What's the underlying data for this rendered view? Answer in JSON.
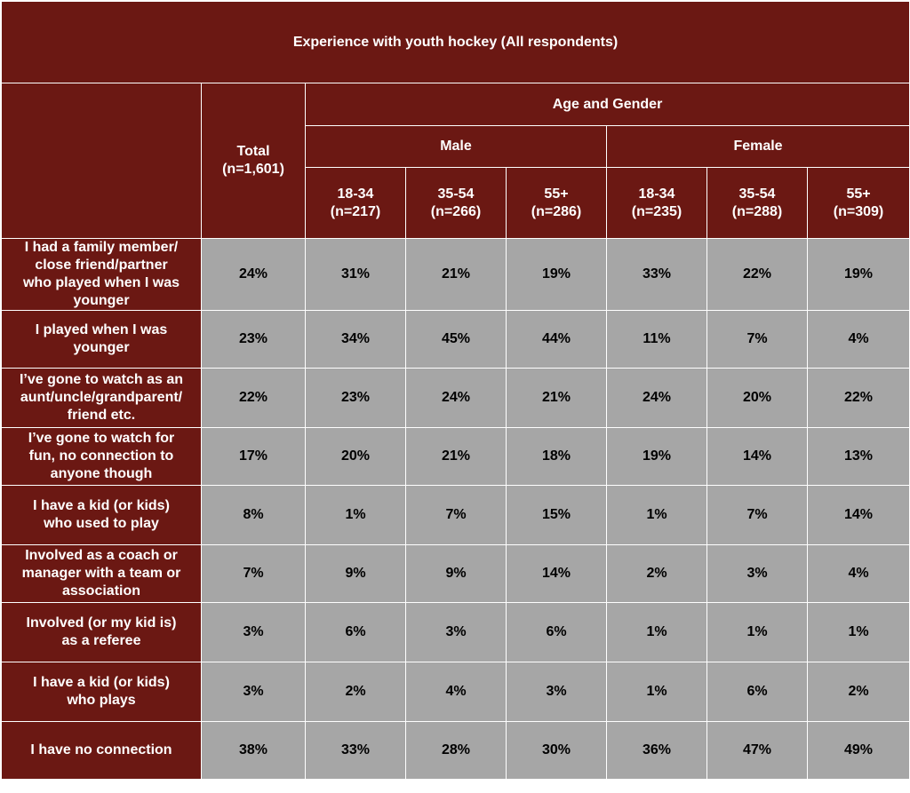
{
  "chart_data": {
    "type": "table",
    "title": "Experience with youth hockey (All respondents)",
    "group_header": "Age and Gender",
    "total_header": [
      "Total",
      "(n=1,601)"
    ],
    "genders": [
      "Male",
      "Female"
    ],
    "columns": [
      [
        "18-34",
        "(n=217)"
      ],
      [
        "35-54",
        "(n=266)"
      ],
      [
        "55+",
        "(n=286)"
      ],
      [
        "18-34",
        "(n=235)"
      ],
      [
        "35-54",
        "(n=288)"
      ],
      [
        "55+",
        "(n=309)"
      ]
    ],
    "rows": [
      {
        "label": [
          "I had a family member/",
          "close friend/partner",
          "who played when I was",
          "younger"
        ],
        "values": [
          "24%",
          "31%",
          "21%",
          "19%",
          "33%",
          "22%",
          "19%"
        ]
      },
      {
        "label": [
          "I played when I was",
          "younger"
        ],
        "values": [
          "23%",
          "34%",
          "45%",
          "44%",
          "11%",
          "7%",
          "4%"
        ]
      },
      {
        "label": [
          "I’ve gone to watch as an",
          "aunt/uncle/grandparent/",
          "friend etc."
        ],
        "values": [
          "22%",
          "23%",
          "24%",
          "21%",
          "24%",
          "20%",
          "22%"
        ]
      },
      {
        "label": [
          "I’ve gone to watch for",
          "fun, no connection to",
          "anyone though"
        ],
        "values": [
          "17%",
          "20%",
          "21%",
          "18%",
          "19%",
          "14%",
          "13%"
        ]
      },
      {
        "label": [
          "I have a kid (or kids)",
          "who used to play"
        ],
        "values": [
          "8%",
          "1%",
          "7%",
          "15%",
          "1%",
          "7%",
          "14%"
        ]
      },
      {
        "label": [
          "Involved as a coach or",
          "manager with a team or",
          "association"
        ],
        "values": [
          "7%",
          "9%",
          "9%",
          "14%",
          "2%",
          "3%",
          "4%"
        ]
      },
      {
        "label": [
          "Involved (or my kid is)",
          "as a referee"
        ],
        "values": [
          "3%",
          "6%",
          "3%",
          "6%",
          "1%",
          "1%",
          "1%"
        ]
      },
      {
        "label": [
          "I have a kid (or kids)",
          "who plays"
        ],
        "values": [
          "3%",
          "2%",
          "4%",
          "3%",
          "1%",
          "6%",
          "2%"
        ]
      },
      {
        "label": [
          "I have no connection"
        ],
        "values": [
          "38%",
          "33%",
          "28%",
          "30%",
          "36%",
          "47%",
          "49%"
        ]
      }
    ],
    "colors": {
      "header_bg": "#6b1813",
      "cell_bg": "#a6a6a6",
      "header_text": "#ffffff",
      "cell_text": "#000000"
    }
  }
}
